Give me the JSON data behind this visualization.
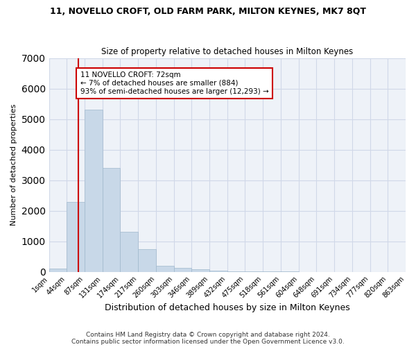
{
  "title": "11, NOVELLO CROFT, OLD FARM PARK, MILTON KEYNES, MK7 8QT",
  "subtitle": "Size of property relative to detached houses in Milton Keynes",
  "xlabel": "Distribution of detached houses by size in Milton Keynes",
  "ylabel": "Number of detached properties",
  "footer1": "Contains HM Land Registry data © Crown copyright and database right 2024.",
  "footer2": "Contains public sector information licensed under the Open Government Licence v3.0.",
  "bar_values": [
    100,
    2280,
    5300,
    3400,
    1300,
    750,
    200,
    120,
    80,
    30,
    10,
    5,
    3,
    2,
    1,
    1,
    1,
    1,
    1,
    1
  ],
  "bin_labels": [
    "1sqm",
    "44sqm",
    "87sqm",
    "131sqm",
    "174sqm",
    "217sqm",
    "260sqm",
    "303sqm",
    "346sqm",
    "389sqm",
    "432sqm",
    "475sqm",
    "518sqm",
    "561sqm",
    "604sqm",
    "648sqm",
    "691sqm",
    "734sqm",
    "777sqm",
    "820sqm",
    "863sqm"
  ],
  "bar_color": "#c8d8e8",
  "bar_edge_color": "#a0b8cc",
  "grid_color": "#d0d8e8",
  "bg_color": "#eef2f8",
  "red_line_x": 1.65,
  "annotation_text": "11 NOVELLO CROFT: 72sqm\n← 7% of detached houses are smaller (884)\n93% of semi-detached houses are larger (12,293) →",
  "annotation_box_color": "#ffffff",
  "annotation_box_edge": "#cc0000",
  "red_line_color": "#cc0000",
  "ylim": [
    0,
    7000
  ],
  "yticks": [
    0,
    1000,
    2000,
    3000,
    4000,
    5000,
    6000,
    7000
  ]
}
